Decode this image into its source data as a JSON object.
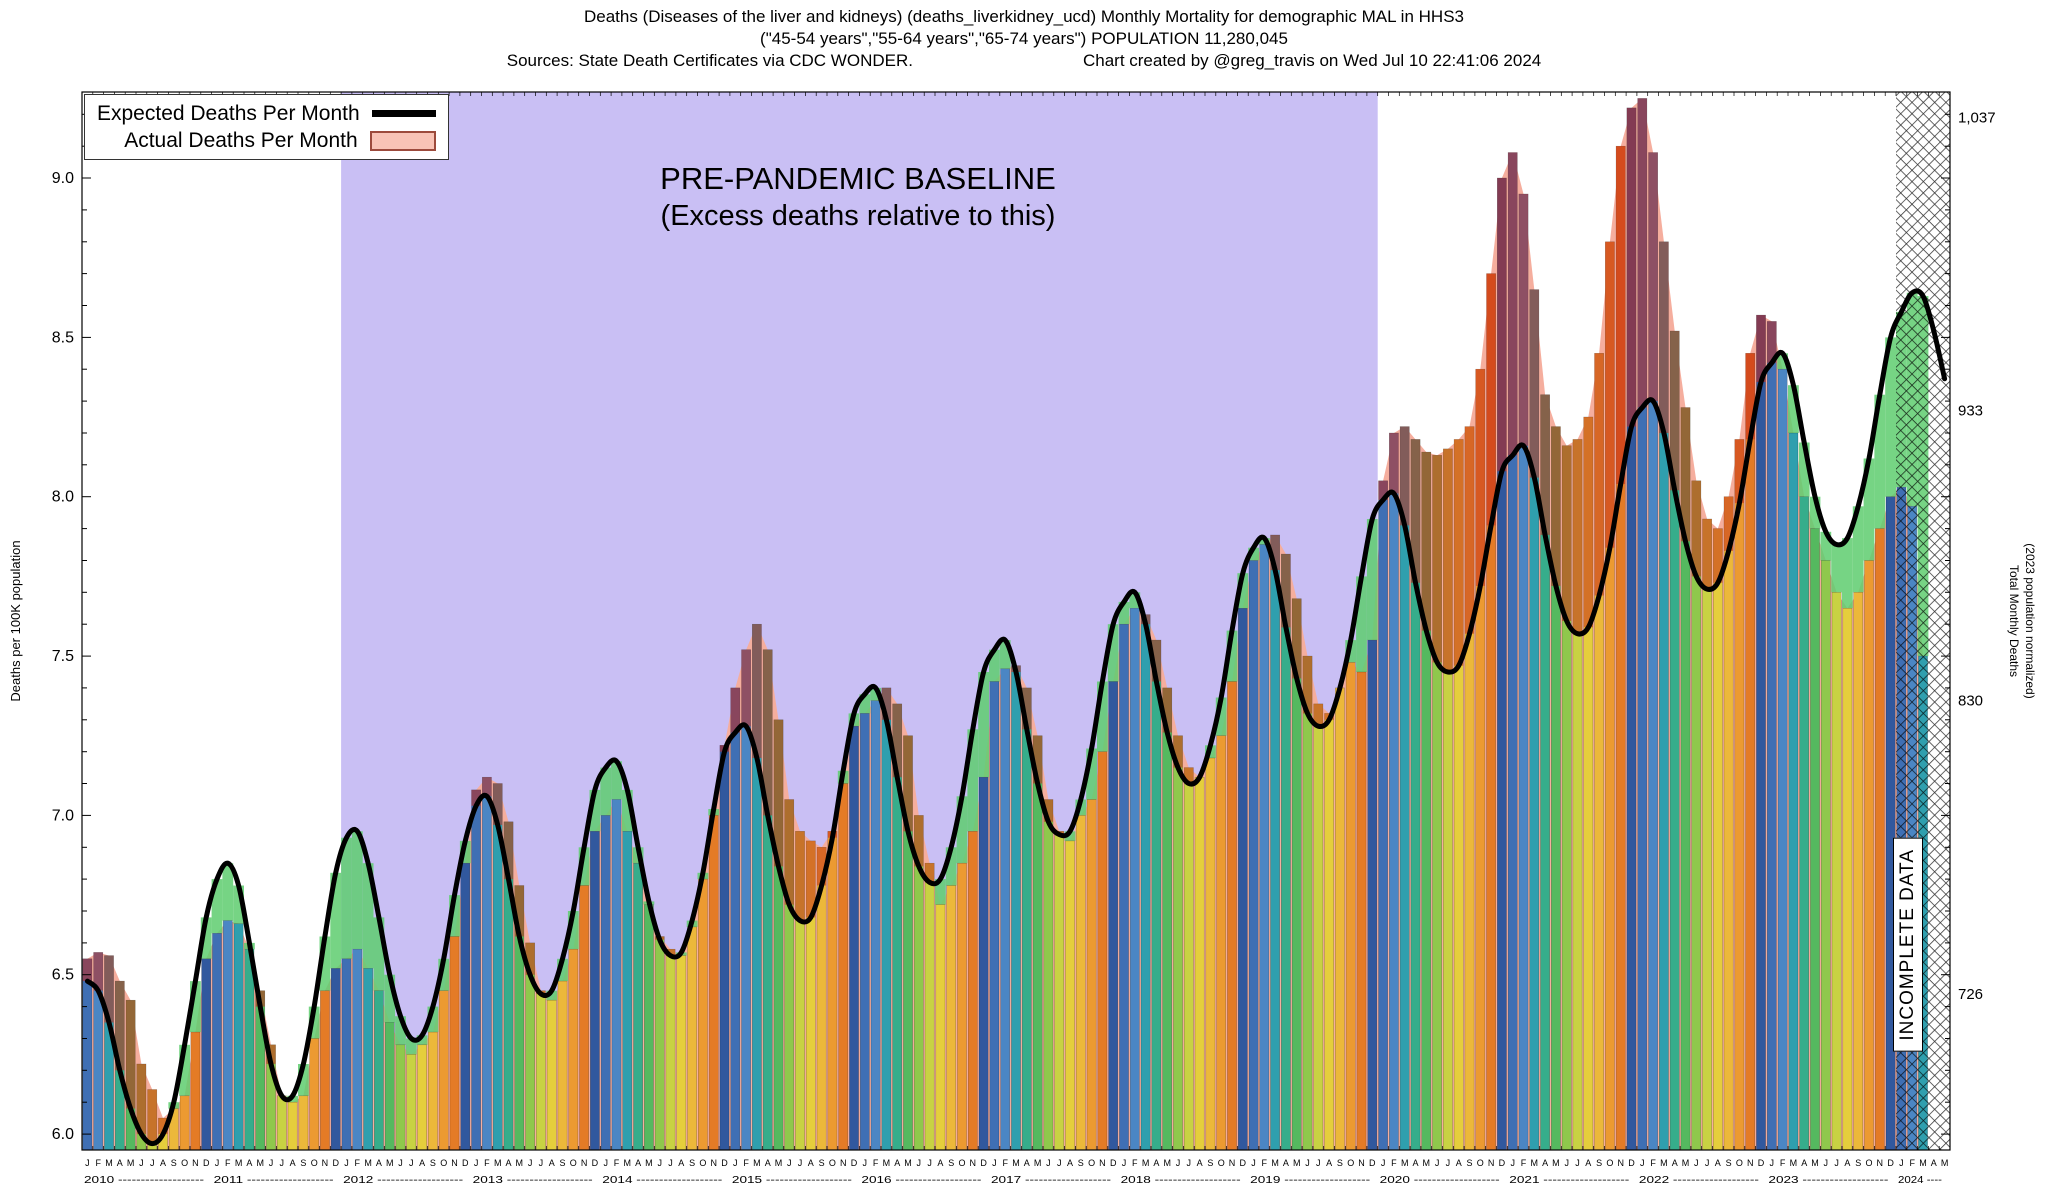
{
  "header": {
    "line1": "Deaths (Diseases of the liver and kidneys) (deaths_liverkidney_ucd) Monthly Mortality for demographic MAL in HHS3",
    "line2": "(\"45-54 years\",\"55-64 years\",\"65-74 years\") POPULATION 11,280,045",
    "sources": "Sources: State Death Certificates via CDC WONDER.",
    "credit": "Chart created by @greg_travis on Wed Jul 10 22:41:06 2024"
  },
  "chart_data": {
    "type": "bar",
    "title": "Deaths (Diseases of the liver and kidneys) (deaths_liverkidney_ucd) Monthly Mortality for demographic MAL in HHS3",
    "xlabel": "",
    "ylabel": "Deaths per 100K population",
    "ylim": [
      5.95,
      9.27
    ],
    "y_ticks": [
      6.0,
      6.5,
      7.0,
      7.5,
      8.0,
      8.5,
      9.0
    ],
    "month_letters": [
      "J",
      "F",
      "M",
      "A",
      "M",
      "J",
      "J",
      "A",
      "S",
      "O",
      "N",
      "D"
    ],
    "left_axis": {
      "label": "Deaths per 100K population"
    },
    "right_axis": {
      "label_lines": [
        "Total Monthly Deaths",
        "(2023 population normalized)"
      ],
      "ticks": [
        {
          "label": "1,037",
          "value": 9.19
        },
        {
          "label": "933",
          "value": 8.27
        },
        {
          "label": "830",
          "value": 7.36
        },
        {
          "label": "726",
          "value": 6.44
        }
      ]
    },
    "legend": {
      "expected": "Expected Deaths Per Month",
      "actual": "Actual Deaths Per Month"
    },
    "annotations": {
      "baseline_line1": "PRE-PANDEMIC BASELINE",
      "baseline_line2": "(Excess deaths relative to this)",
      "incomplete": "INCOMPLETE DATA"
    },
    "baseline_region": {
      "start_index": 24,
      "end_index": 120
    },
    "incomplete_region": {
      "start_index": 168
    },
    "colors": {
      "baseline_bg": "#c9bff4",
      "actual_area": "#f5ae9e",
      "deficit": "#5ecc6e",
      "excess": "#c62415",
      "expected": "#000000",
      "hatch": "#000000",
      "bar_palette": [
        "#3f6fb4",
        "#4b86c4",
        "#2f9fae",
        "#36ad8b",
        "#55b95f",
        "#8fc84c",
        "#c8d243",
        "#e5ce3c",
        "#ecb83a",
        "#ec9a31",
        "#e47b26",
        "#31589e"
      ]
    },
    "years": [
      {
        "year": 2010,
        "expected": [
          6.48,
          6.45,
          6.35,
          6.2,
          6.08,
          6.0,
          5.97,
          6.0,
          6.1,
          6.28,
          6.48,
          6.68
        ],
        "actual": [
          6.55,
          6.57,
          6.56,
          6.48,
          6.42,
          6.22,
          6.14,
          6.05,
          6.08,
          6.12,
          6.32,
          6.55
        ]
      },
      {
        "year": 2011,
        "expected": [
          6.8,
          6.85,
          6.78,
          6.6,
          6.4,
          6.22,
          6.12,
          6.12,
          6.22,
          6.4,
          6.62,
          6.82
        ],
        "actual": [
          6.63,
          6.67,
          6.66,
          6.58,
          6.45,
          6.28,
          6.12,
          6.1,
          6.12,
          6.3,
          6.45,
          6.52
        ]
      },
      {
        "year": 2012,
        "expected": [
          6.93,
          6.95,
          6.85,
          6.68,
          6.5,
          6.37,
          6.3,
          6.31,
          6.4,
          6.55,
          6.75,
          6.92
        ],
        "actual": [
          6.55,
          6.58,
          6.52,
          6.45,
          6.35,
          6.28,
          6.25,
          6.28,
          6.32,
          6.45,
          6.62,
          6.85
        ]
      },
      {
        "year": 2013,
        "expected": [
          7.03,
          7.06,
          6.97,
          6.8,
          6.62,
          6.5,
          6.44,
          6.45,
          6.55,
          6.7,
          6.9,
          7.08
        ],
        "actual": [
          7.08,
          7.12,
          7.1,
          6.98,
          6.78,
          6.6,
          6.45,
          6.42,
          6.48,
          6.58,
          6.78,
          6.95
        ]
      },
      {
        "year": 2014,
        "expected": [
          7.15,
          7.17,
          7.08,
          6.9,
          6.73,
          6.61,
          6.56,
          6.57,
          6.67,
          6.82,
          7.02,
          7.2
        ],
        "actual": [
          7.0,
          7.05,
          6.95,
          6.85,
          6.72,
          6.62,
          6.58,
          6.56,
          6.65,
          6.8,
          7.0,
          7.22
        ]
      },
      {
        "year": 2015,
        "expected": [
          7.26,
          7.28,
          7.18,
          7.0,
          6.84,
          6.72,
          6.67,
          6.68,
          6.78,
          6.93,
          7.14,
          7.32
        ],
        "actual": [
          7.4,
          7.52,
          7.6,
          7.52,
          7.3,
          7.05,
          6.95,
          6.92,
          6.9,
          6.95,
          7.1,
          7.28
        ]
      },
      {
        "year": 2016,
        "expected": [
          7.38,
          7.4,
          7.3,
          7.12,
          6.95,
          6.84,
          6.79,
          6.8,
          6.9,
          7.06,
          7.27,
          7.45
        ],
        "actual": [
          7.32,
          7.36,
          7.4,
          7.35,
          7.25,
          7.0,
          6.85,
          6.72,
          6.78,
          6.85,
          6.95,
          7.12
        ]
      },
      {
        "year": 2017,
        "expected": [
          7.52,
          7.55,
          7.45,
          7.27,
          7.1,
          6.98,
          6.94,
          6.95,
          7.05,
          7.21,
          7.42,
          7.6
        ],
        "actual": [
          7.42,
          7.46,
          7.47,
          7.4,
          7.25,
          7.05,
          6.95,
          6.92,
          7.0,
          7.05,
          7.2,
          7.42
        ]
      },
      {
        "year": 2018,
        "expected": [
          7.67,
          7.7,
          7.6,
          7.42,
          7.26,
          7.15,
          7.1,
          7.12,
          7.22,
          7.37,
          7.58,
          7.76
        ],
        "actual": [
          7.6,
          7.65,
          7.63,
          7.55,
          7.4,
          7.25,
          7.15,
          7.12,
          7.18,
          7.25,
          7.42,
          7.65
        ]
      },
      {
        "year": 2019,
        "expected": [
          7.84,
          7.87,
          7.77,
          7.59,
          7.43,
          7.32,
          7.28,
          7.3,
          7.4,
          7.55,
          7.75,
          7.93
        ],
        "actual": [
          7.8,
          7.85,
          7.88,
          7.82,
          7.68,
          7.5,
          7.35,
          7.32,
          7.4,
          7.48,
          7.45,
          7.55
        ]
      },
      {
        "year": 2020,
        "expected": [
          7.99,
          8.01,
          7.91,
          7.73,
          7.58,
          7.48,
          7.45,
          7.47,
          7.57,
          7.72,
          7.91,
          8.08
        ],
        "actual": [
          8.05,
          8.2,
          8.22,
          8.18,
          8.14,
          8.13,
          8.15,
          8.18,
          8.22,
          8.4,
          8.7,
          9.0
        ]
      },
      {
        "year": 2021,
        "expected": [
          8.13,
          8.16,
          8.06,
          7.88,
          7.72,
          7.61,
          7.57,
          7.59,
          7.69,
          7.84,
          8.04,
          8.22
        ],
        "actual": [
          9.08,
          8.95,
          8.65,
          8.32,
          8.22,
          8.16,
          8.18,
          8.25,
          8.45,
          8.8,
          9.1,
          9.22
        ]
      },
      {
        "year": 2022,
        "expected": [
          8.28,
          8.3,
          8.2,
          8.02,
          7.86,
          7.75,
          7.71,
          7.73,
          7.83,
          7.98,
          8.18,
          8.36
        ],
        "actual": [
          9.25,
          9.08,
          8.8,
          8.52,
          8.28,
          8.05,
          7.93,
          7.9,
          8.0,
          8.18,
          8.45,
          8.57
        ]
      },
      {
        "year": 2023,
        "expected": [
          8.42,
          8.45,
          8.35,
          8.17,
          8.0,
          7.89,
          7.85,
          7.87,
          7.97,
          8.12,
          8.32,
          8.5
        ],
        "actual": [
          8.55,
          8.4,
          8.2,
          8.0,
          7.9,
          7.8,
          7.7,
          7.65,
          7.7,
          7.8,
          7.9,
          8.0
        ]
      },
      {
        "year": 2024,
        "expected": [
          8.58,
          8.64,
          8.63,
          8.52,
          8.37
        ],
        "actual": [
          8.03,
          7.97,
          7.5,
          null,
          null
        ]
      }
    ]
  }
}
